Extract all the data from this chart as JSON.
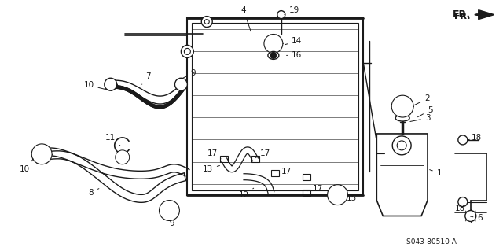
{
  "background_color": "#ffffff",
  "line_color": "#1a1a1a",
  "fig_width": 6.4,
  "fig_height": 3.19,
  "dpi": 100,
  "part_number_label": "S043-80510 A",
  "fr_label": "FR."
}
